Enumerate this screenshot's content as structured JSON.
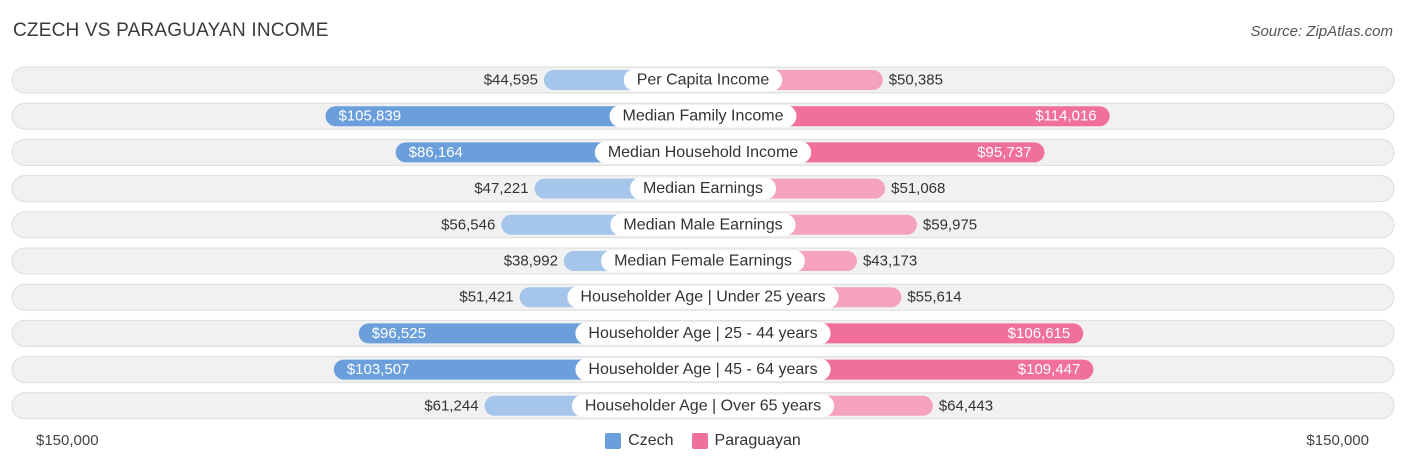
{
  "header": {
    "title": "CZECH VS PARAGUAYAN INCOME",
    "source": "Source: ZipAtlas.com"
  },
  "axis": {
    "left_label": "$150,000",
    "right_label": "$150,000"
  },
  "legend": [
    {
      "label": "Czech",
      "color": "#6a9fdc"
    },
    {
      "label": "Paraguayan",
      "color": "#f07099"
    }
  ],
  "colors": {
    "czech_dark": "#6a9fdc",
    "czech_light": "#a5c5ea",
    "paraguayan_dark": "#f07099",
    "paraguayan_light": "#f5a3bd",
    "row_bg": "#f1f1f1",
    "row_border": "#dddddd"
  },
  "chart_data": {
    "type": "bar",
    "orientation": "horizontal-diverging",
    "title": "CZECH VS PARAGUAYAN INCOME",
    "xlim": [
      0,
      150000
    ],
    "categories": [
      "Per Capita Income",
      "Median Family Income",
      "Median Household Income",
      "Median Earnings",
      "Median Male Earnings",
      "Median Female Earnings",
      "Householder Age | Under 25 years",
      "Householder Age | 25 - 44 years",
      "Householder Age | 45 - 64 years",
      "Householder Age | Over 65 years"
    ],
    "series": [
      {
        "name": "Czech",
        "values": [
          44595,
          105839,
          86164,
          47221,
          56546,
          38992,
          51421,
          96525,
          103507,
          61244
        ],
        "labels": [
          "$44,595",
          "$105,839",
          "$86,164",
          "$47,221",
          "$56,546",
          "$38,992",
          "$51,421",
          "$96,525",
          "$103,507",
          "$61,244"
        ]
      },
      {
        "name": "Paraguayan",
        "values": [
          50385,
          114016,
          95737,
          51068,
          59975,
          43173,
          55614,
          106615,
          109447,
          64443
        ],
        "labels": [
          "$50,385",
          "$114,016",
          "$95,737",
          "$51,068",
          "$59,975",
          "$43,173",
          "$55,614",
          "$106,615",
          "$109,447",
          "$64,443"
        ]
      }
    ],
    "highlight_rows": [
      1,
      2,
      7,
      8
    ]
  }
}
